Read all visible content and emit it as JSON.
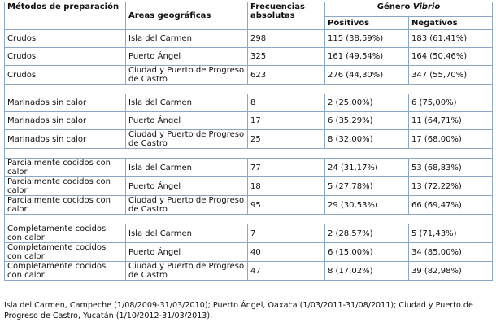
{
  "headers": {
    "metodos": "Métodos de preparación",
    "areas": "Áreas geográficas",
    "frecuencias": "Frecuencias absolutas",
    "genero_prefix": "Género ",
    "genero_italic": "Vibrio",
    "positivos": "Positivos",
    "negativos": "Negativos"
  },
  "groups": [
    {
      "rows": [
        {
          "metodo": "Crudos",
          "area": "Isla del Carmen",
          "frecuencia": "298",
          "positivos": "115 (38,59%)",
          "negativos": "183 (61,41%)"
        },
        {
          "metodo": "Crudos",
          "area": "Puerto Ángel",
          "frecuencia": "325",
          "positivos": "161 (49,54%)",
          "negativos": "164 (50,46%)"
        },
        {
          "metodo": "Crudos",
          "area": "Ciudad y Puerto de Progreso de Castro",
          "frecuencia": "623",
          "positivos": "276 (44,30%)",
          "negativos": "347 (55,70%)"
        }
      ]
    },
    {
      "rows": [
        {
          "metodo": "Marinados sin calor",
          "area": "Isla del Carmen",
          "frecuencia": "8",
          "positivos": "2 (25,00%)",
          "negativos": "6 (75,00%)"
        },
        {
          "metodo": "Marinados sin calor",
          "area": "Puerto Ángel",
          "frecuencia": "17",
          "positivos": "6 (35,29%)",
          "negativos": "11 (64,71%)"
        },
        {
          "metodo": "Marinados sin calor",
          "area": "Ciudad y Puerto de Progreso de Castro",
          "frecuencia": "25",
          "positivos": "8 (32,00%)",
          "negativos": "17 (68,00%)"
        }
      ]
    },
    {
      "rows": [
        {
          "metodo": "Parcialmente cocidos con calor",
          "area": "Isla del Carmen",
          "frecuencia": "77",
          "positivos": "24 (31,17%)",
          "negativos": "53 (68,83%)"
        },
        {
          "metodo": "Parcialmente cocidos con calor",
          "area": "Puerto Ángel",
          "frecuencia": "18",
          "positivos": "5 (27,78%)",
          "negativos": "13 (72,22%)"
        },
        {
          "metodo": "Parcialmente cocidos con calor",
          "area": "Ciudad y Puerto de Progreso de Castro",
          "frecuencia": "95",
          "positivos": "29 (30,53%)",
          "negativos": "66 (69,47%)"
        }
      ]
    },
    {
      "rows": [
        {
          "metodo": "Completamente cocidos con calor",
          "area": "Isla del Carmen",
          "frecuencia": "7",
          "positivos": "2 (28,57%)",
          "negativos": "5 (71,43%)"
        },
        {
          "metodo": "Completamente cocidos con calor",
          "area": "Puerto Ángel",
          "frecuencia": "40",
          "positivos": "6 (15,00%)",
          "negativos": "34 (85,00%)"
        },
        {
          "metodo": "Completamente cocidos con calor",
          "area": "Ciudad y Puerto de Progreso de Castro",
          "frecuencia": "47",
          "positivos": "8 (17,02%)",
          "negativos": "39 (82,98%)"
        }
      ]
    }
  ],
  "footnote": "Isla del Carmen, Campeche (1/08/2009-31/03/2010); Puerto Ángel, Oaxaca (1/03/2011-31/08/2011); Ciudad y Puerto de Progreso de Castro, Yucatán (1/10/2012-31/03/2013).",
  "colors": {
    "border": "#8aa8c4",
    "text": "#111111"
  }
}
